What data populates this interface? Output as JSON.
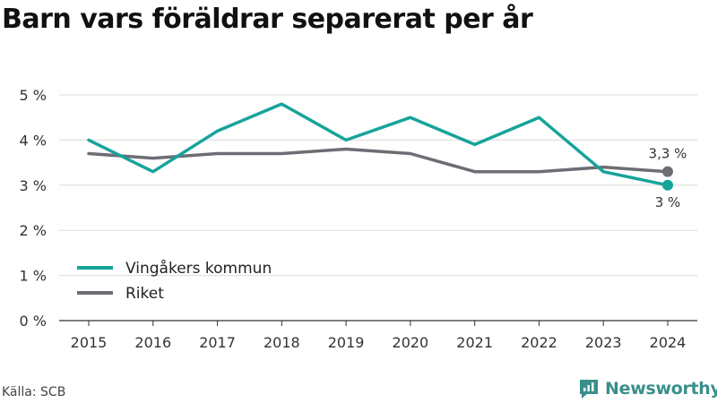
{
  "title": "Barn vars föräldrar separerat per år",
  "source": "Källa: SCB",
  "brand": {
    "name": "Newsworthy",
    "icon": "newsworthy-logo-icon",
    "color": "#3a8f8a"
  },
  "colors": {
    "series1": "#16a39a",
    "series2": "#6e6d74",
    "grid": "#dcdcdc",
    "axis": "#333333"
  },
  "chart_data": {
    "type": "line",
    "title": "Barn vars föräldrar separerat per år",
    "x": [
      "2015",
      "2016",
      "2017",
      "2018",
      "2019",
      "2020",
      "2021",
      "2022",
      "2023",
      "2024"
    ],
    "ylim": [
      0,
      5
    ],
    "yticks": [
      0,
      1,
      2,
      3,
      4,
      5
    ],
    "ytick_labels": [
      "0 %",
      "1 %",
      "2 %",
      "3 %",
      "4 %",
      "5 %"
    ],
    "grid": true,
    "legend_position": "bottom-left",
    "series": [
      {
        "name": "Vingåkers kommun",
        "values": [
          4.0,
          3.3,
          4.2,
          4.8,
          4.0,
          4.5,
          3.9,
          4.5,
          3.3,
          3.0
        ],
        "end_label": "3 %"
      },
      {
        "name": "Riket",
        "values": [
          3.7,
          3.6,
          3.7,
          3.7,
          3.8,
          3.7,
          3.3,
          3.3,
          3.4,
          3.3
        ],
        "end_label": "3,3 %"
      }
    ]
  }
}
